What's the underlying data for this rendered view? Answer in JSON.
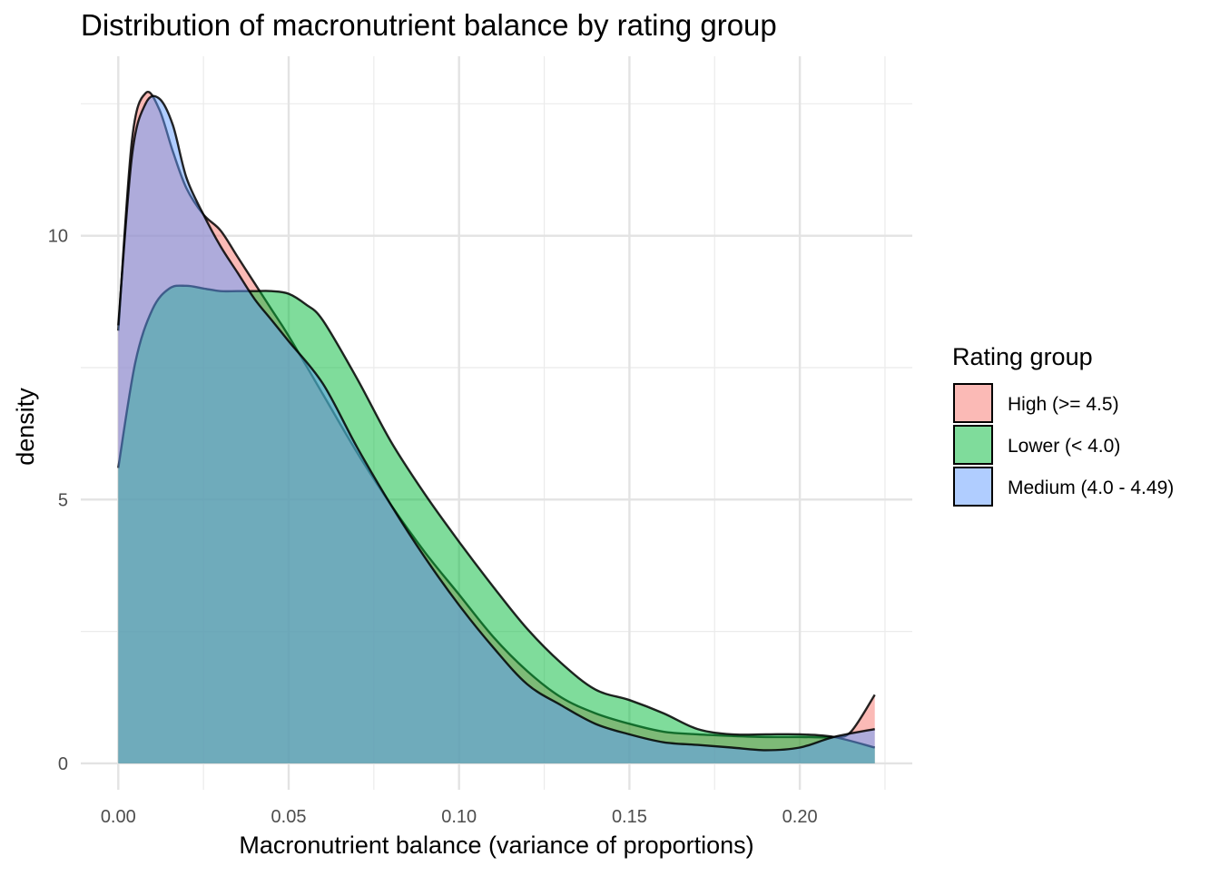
{
  "chart_data": {
    "type": "area",
    "subtype": "density",
    "title": "Distribution of macronutrient balance by rating group",
    "xlabel": "Macronutrient balance (variance of proportions)",
    "ylabel": "density",
    "xlim": [
      -0.011,
      0.233
    ],
    "ylim": [
      -0.5,
      13.4
    ],
    "x_ticks": [
      0.0,
      0.05,
      0.1,
      0.15,
      0.2
    ],
    "x_tick_labels": [
      "0.00",
      "0.05",
      "0.10",
      "0.15",
      "0.20"
    ],
    "x_minor_ticks": [
      0.025,
      0.075,
      0.125,
      0.175,
      0.225
    ],
    "y_ticks": [
      0,
      5,
      10
    ],
    "y_tick_labels": [
      "0",
      "5",
      "10"
    ],
    "y_minor_ticks": [
      2.5,
      7.5,
      12.5
    ],
    "grid": true,
    "legend": {
      "title": "Rating group",
      "position": "right"
    },
    "series": [
      {
        "name": "High (>= 4.5)",
        "color": "#F8766D",
        "x": [
          0.0,
          0.004,
          0.008,
          0.012,
          0.016,
          0.02,
          0.025,
          0.03,
          0.035,
          0.04,
          0.045,
          0.05,
          0.06,
          0.07,
          0.08,
          0.09,
          0.1,
          0.11,
          0.12,
          0.13,
          0.14,
          0.15,
          0.16,
          0.17,
          0.18,
          0.19,
          0.2,
          0.21,
          0.215,
          0.222
        ],
        "y": [
          8.2,
          11.8,
          12.7,
          12.4,
          11.6,
          10.9,
          10.4,
          10.1,
          9.6,
          9.1,
          8.6,
          8.1,
          7.0,
          5.9,
          4.9,
          4.0,
          3.2,
          2.4,
          1.75,
          1.25,
          0.95,
          0.75,
          0.6,
          0.55,
          0.52,
          0.5,
          0.5,
          0.5,
          0.6,
          1.3
        ]
      },
      {
        "name": "Lower (< 4.0)",
        "color": "#00BA38",
        "x": [
          0.0,
          0.005,
          0.01,
          0.015,
          0.02,
          0.025,
          0.03,
          0.035,
          0.04,
          0.045,
          0.05,
          0.055,
          0.06,
          0.07,
          0.08,
          0.09,
          0.1,
          0.11,
          0.12,
          0.13,
          0.14,
          0.15,
          0.16,
          0.17,
          0.18,
          0.19,
          0.2,
          0.21,
          0.222
        ],
        "y": [
          5.6,
          7.6,
          8.6,
          9.0,
          9.05,
          9.0,
          8.95,
          8.95,
          8.95,
          8.95,
          8.9,
          8.7,
          8.4,
          7.3,
          6.1,
          5.1,
          4.2,
          3.35,
          2.55,
          1.9,
          1.4,
          1.2,
          0.95,
          0.65,
          0.55,
          0.55,
          0.55,
          0.5,
          0.3
        ]
      },
      {
        "name": "Medium (4.0 - 4.49)",
        "color": "#619CFF",
        "x": [
          0.0,
          0.004,
          0.008,
          0.012,
          0.016,
          0.02,
          0.025,
          0.03,
          0.035,
          0.04,
          0.045,
          0.05,
          0.06,
          0.07,
          0.08,
          0.09,
          0.1,
          0.11,
          0.12,
          0.13,
          0.14,
          0.15,
          0.16,
          0.17,
          0.18,
          0.19,
          0.2,
          0.21,
          0.222
        ],
        "y": [
          8.3,
          11.5,
          12.5,
          12.6,
          12.1,
          11.1,
          10.4,
          9.8,
          9.3,
          8.8,
          8.4,
          8.0,
          7.2,
          6.0,
          4.9,
          3.9,
          3.0,
          2.2,
          1.5,
          1.1,
          0.75,
          0.55,
          0.4,
          0.35,
          0.3,
          0.25,
          0.3,
          0.5,
          0.65
        ]
      }
    ]
  }
}
